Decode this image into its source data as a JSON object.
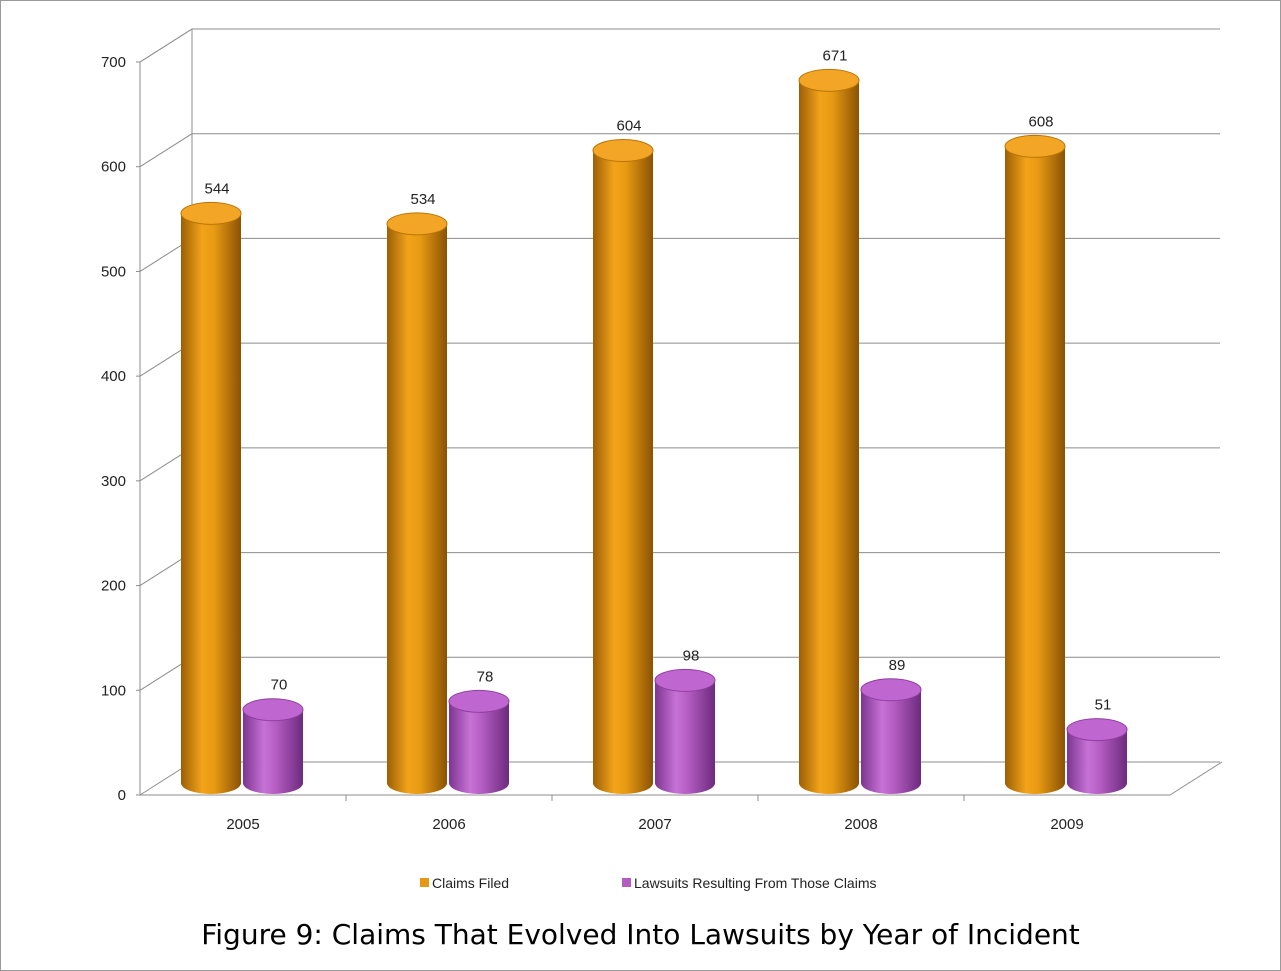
{
  "chart_data": {
    "type": "bar",
    "categories": [
      "2005",
      "2006",
      "2007",
      "2008",
      "2009"
    ],
    "series": [
      {
        "name": "Claims Filed",
        "values": [
          544,
          534,
          604,
          671,
          608
        ],
        "color": "#E39A12"
      },
      {
        "name": "Lawsuits Resulting From Those Claims",
        "values": [
          70,
          78,
          98,
          89,
          51
        ],
        "color": "#B45CC2"
      }
    ],
    "yticks": [
      "0",
      "100",
      "200",
      "300",
      "400",
      "500",
      "600",
      "700"
    ],
    "ylim": [
      0,
      700
    ],
    "grid": true,
    "legend": "bottom",
    "style": "3d-cylinder"
  },
  "caption": "Figure 9: Claims That Evolved Into Lawsuits by Year of Incident"
}
